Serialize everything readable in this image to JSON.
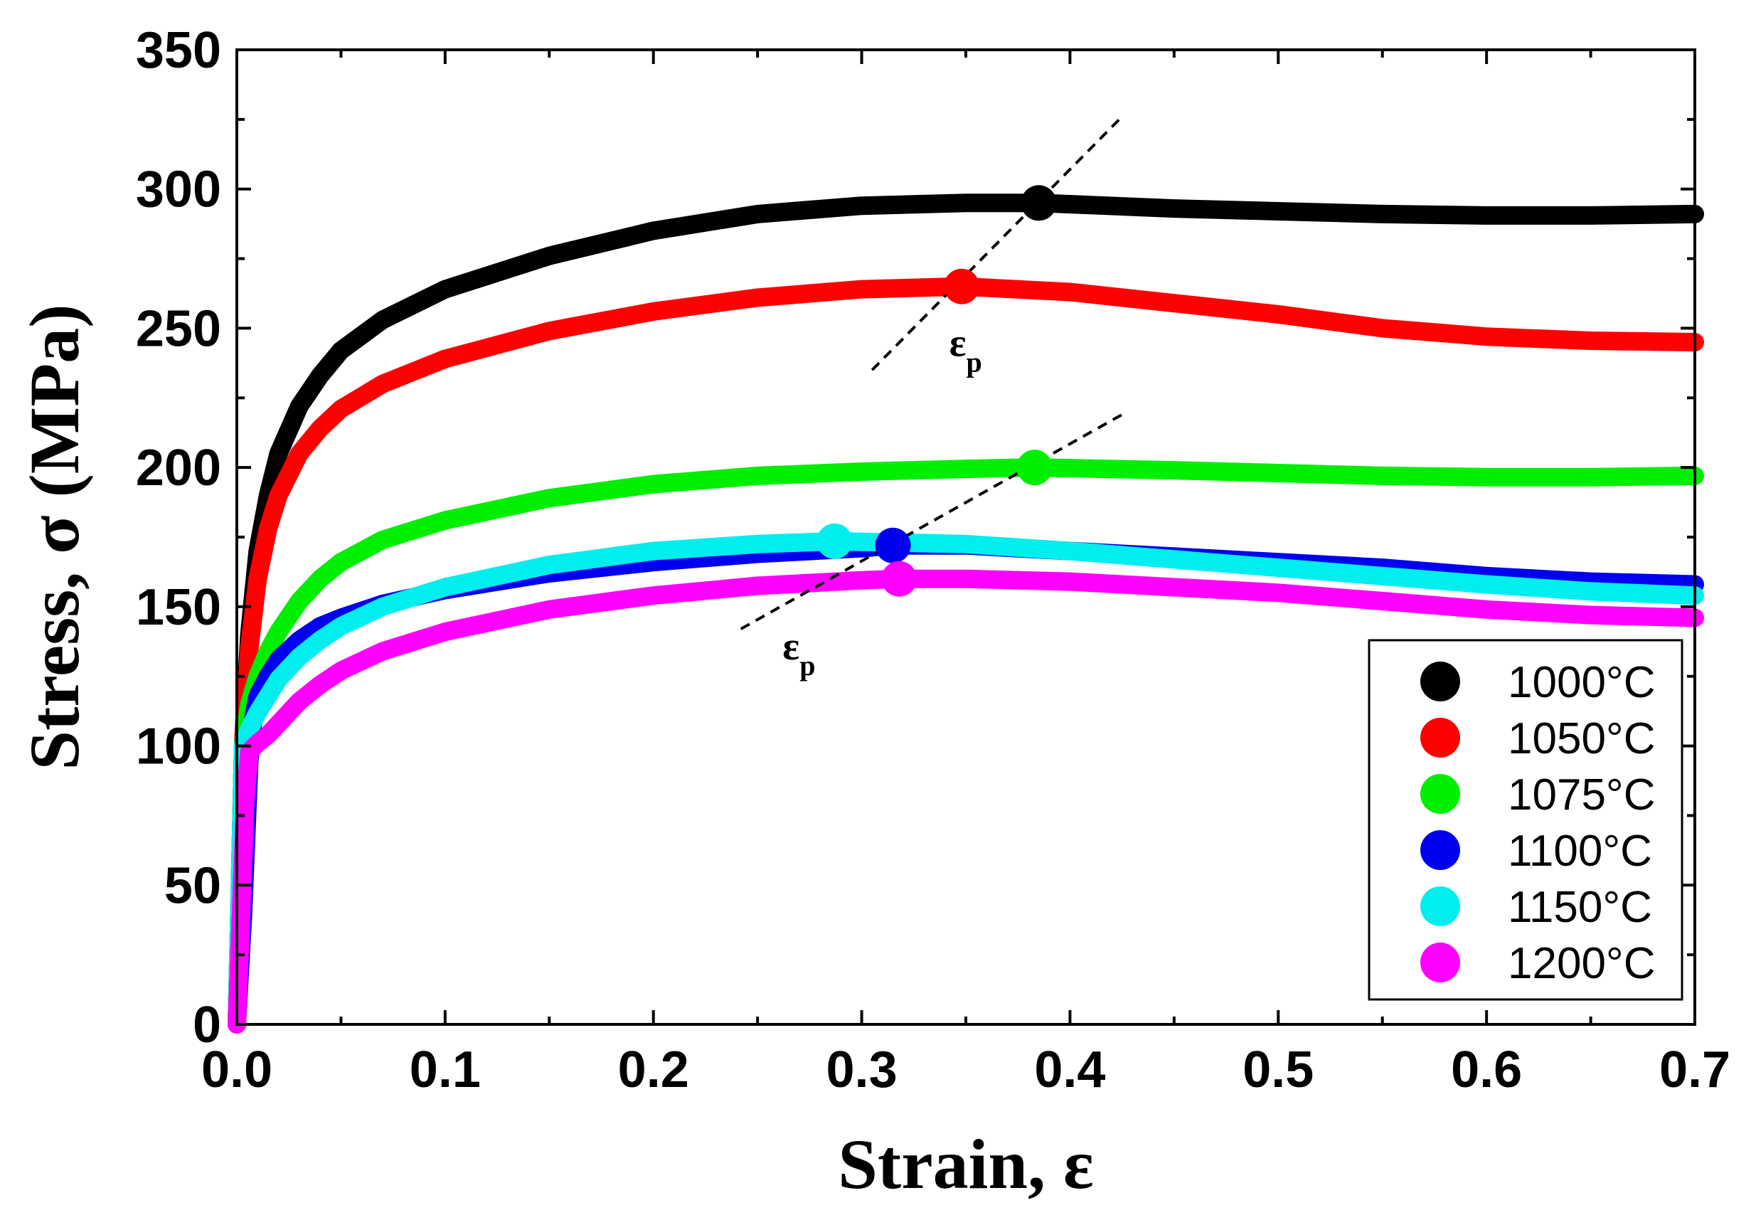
{
  "chart_data": {
    "type": "line",
    "title": "",
    "xlabel": "Strain, ε",
    "ylabel": "Stress, σ (MPa)",
    "xlim": [
      0.0,
      0.7
    ],
    "ylim": [
      0,
      350
    ],
    "xticks": [
      0.0,
      0.1,
      0.2,
      0.3,
      0.4,
      0.5,
      0.6,
      0.7
    ],
    "xtick_labels": [
      "0.0",
      "0.1",
      "0.2",
      "0.3",
      "0.4",
      "0.5",
      "0.6",
      "0.7"
    ],
    "yticks": [
      0,
      50,
      100,
      150,
      200,
      250,
      300,
      350
    ],
    "ytick_labels": [
      "0",
      "50",
      "100",
      "150",
      "200",
      "250",
      "300",
      "350"
    ],
    "grid": false,
    "legend_position": "bottom-right",
    "series": [
      {
        "name": "1000°C",
        "color": "#000000",
        "x": [
          0.0,
          0.003,
          0.006,
          0.01,
          0.015,
          0.02,
          0.03,
          0.04,
          0.05,
          0.07,
          0.1,
          0.15,
          0.2,
          0.25,
          0.3,
          0.35,
          0.385,
          0.45,
          0.5,
          0.55,
          0.6,
          0.65,
          0.7
        ],
        "y": [
          0,
          100,
          140,
          170,
          190,
          205,
          222,
          233,
          242,
          253,
          264,
          276,
          285,
          291,
          294,
          295,
          295,
          293,
          292,
          291,
          290.5,
          290.5,
          291
        ],
        "peak": {
          "x": 0.385,
          "y": 295
        }
      },
      {
        "name": "1050°C",
        "color": "#ff0000",
        "x": [
          0.0,
          0.003,
          0.006,
          0.01,
          0.015,
          0.02,
          0.03,
          0.04,
          0.05,
          0.07,
          0.1,
          0.15,
          0.2,
          0.25,
          0.3,
          0.348,
          0.4,
          0.45,
          0.5,
          0.55,
          0.6,
          0.65,
          0.7
        ],
        "y": [
          0,
          100,
          135,
          160,
          178,
          190,
          205,
          214,
          221,
          230,
          239,
          249,
          256,
          261,
          264,
          265,
          263,
          259,
          255,
          250,
          247,
          245.5,
          245
        ],
        "peak": {
          "x": 0.348,
          "y": 265
        }
      },
      {
        "name": "1075°C",
        "color": "#00ee00",
        "x": [
          0.0,
          0.003,
          0.006,
          0.01,
          0.015,
          0.02,
          0.03,
          0.04,
          0.05,
          0.07,
          0.1,
          0.15,
          0.2,
          0.25,
          0.3,
          0.35,
          0.383,
          0.45,
          0.5,
          0.55,
          0.6,
          0.65,
          0.7
        ],
        "y": [
          0,
          100,
          115,
          125,
          134,
          141,
          152,
          160,
          166,
          174,
          181,
          189,
          194,
          197,
          198.5,
          199.5,
          200,
          199,
          198,
          197,
          196.5,
          196.5,
          197
        ],
        "peak": {
          "x": 0.383,
          "y": 200
        }
      },
      {
        "name": "1100°C",
        "color": "#0000ee",
        "x": [
          0.0,
          0.003,
          0.006,
          0.008,
          0.01,
          0.015,
          0.02,
          0.03,
          0.04,
          0.05,
          0.07,
          0.1,
          0.15,
          0.2,
          0.25,
          0.3,
          0.315,
          0.35,
          0.4,
          0.45,
          0.5,
          0.55,
          0.6,
          0.65,
          0.7
        ],
        "y": [
          0,
          40,
          95,
          110,
          118,
          125,
          131,
          138,
          143,
          146,
          151,
          156,
          162,
          166,
          169,
          171,
          172,
          172,
          170,
          168,
          166,
          164,
          161,
          159,
          158
        ],
        "peak": {
          "x": 0.315,
          "y": 172
        }
      },
      {
        "name": "1150°C",
        "color": "#00eeee",
        "x": [
          0.0,
          0.003,
          0.006,
          0.01,
          0.015,
          0.02,
          0.03,
          0.04,
          0.05,
          0.07,
          0.1,
          0.15,
          0.2,
          0.25,
          0.287,
          0.35,
          0.4,
          0.45,
          0.5,
          0.55,
          0.6,
          0.65,
          0.7
        ],
        "y": [
          0,
          100,
          106,
          112,
          118,
          124,
          132,
          138,
          143,
          150,
          157,
          165,
          170,
          172.5,
          173.5,
          172.5,
          170,
          167,
          164,
          161,
          158,
          155.5,
          154
        ],
        "peak": {
          "x": 0.287,
          "y": 173.5
        }
      },
      {
        "name": "1200°C",
        "color": "#ff00ff",
        "x": [
          0.0,
          0.002,
          0.004,
          0.006,
          0.01,
          0.015,
          0.02,
          0.03,
          0.04,
          0.05,
          0.07,
          0.1,
          0.15,
          0.2,
          0.25,
          0.3,
          0.318,
          0.35,
          0.4,
          0.45,
          0.5,
          0.55,
          0.6,
          0.65,
          0.7
        ],
        "y": [
          0,
          40,
          80,
          98,
          101,
          104,
          108,
          116,
          122,
          127,
          134,
          141,
          149,
          154,
          157.5,
          159.5,
          160,
          160,
          159,
          157,
          155,
          152,
          149,
          147,
          146
        ],
        "peak": {
          "x": 0.318,
          "y": 160
        }
      }
    ],
    "annotations": [
      {
        "label": "ε",
        "sub": "p",
        "x": 0.342,
        "y": 240,
        "line": {
          "x1": 0.305,
          "y1": 235,
          "x2": 0.425,
          "y2": 326
        }
      },
      {
        "label": "ε",
        "sub": "p",
        "x": 0.262,
        "y": 131,
        "line": {
          "x1": 0.242,
          "y1": 142,
          "x2": 0.425,
          "y2": 219
        }
      }
    ]
  }
}
